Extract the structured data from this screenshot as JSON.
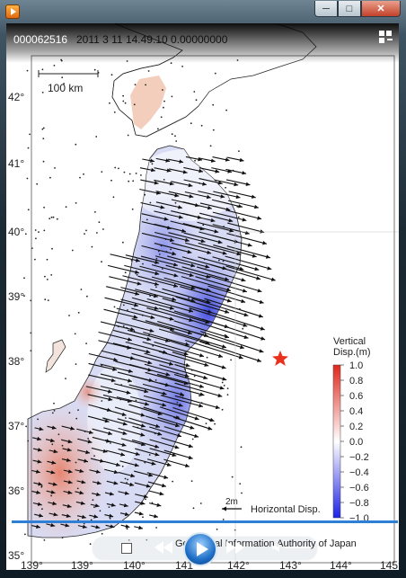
{
  "window": {
    "app_icon": "media-player-icon",
    "buttons": {
      "minimize": "─",
      "maximize": "□",
      "close": "✕"
    }
  },
  "overlay": {
    "frame_counter": "000062516",
    "frame_time": "2011 3 11 14.49.10 0.00000000"
  },
  "map": {
    "lat_labels": [
      "42°",
      "41°",
      "40°",
      "39°",
      "38°",
      "37°",
      "36°",
      "35°"
    ],
    "lon_labels": [
      "139°",
      "139°",
      "140°",
      "141°",
      "142°",
      "143°",
      "144°",
      "145°"
    ],
    "scale_bar_label": "100 km",
    "legend_title_1": "Vertical",
    "legend_title_2": "Disp.(m)",
    "legend_ticks": [
      "1.0",
      "0.8",
      "0.6",
      "0.4",
      "0.2",
      "0.0",
      "−0.2",
      "−0.4",
      "−0.6",
      "−0.8",
      "−1.0"
    ],
    "arrow_scale_label": "2m",
    "arrow_scale_caption": "Horizontal Disp.",
    "credit": "Geospatial Information Authority of Japan",
    "epicenter_icon": "star-icon"
  },
  "controls": {
    "progress": 1.0,
    "play_icon": "play-icon",
    "stop_icon": "stop-icon",
    "rewind_icon": "rewind-icon",
    "forward_icon": "fast-forward-icon",
    "volume_icon": "volume-icon",
    "fullscreen_icon": "fullscreen-icon"
  }
}
